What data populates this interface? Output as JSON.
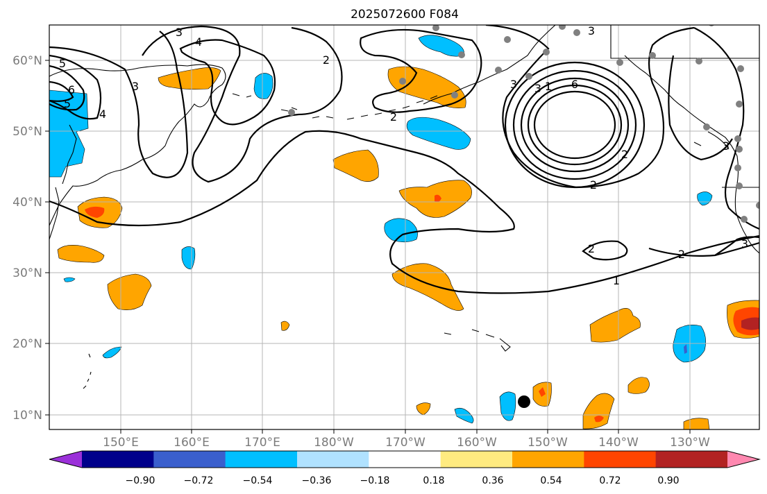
{
  "title": "2025072600 F084",
  "map": {
    "lat_labels": [
      "60°N",
      "50°N",
      "40°N",
      "30°N",
      "20°N",
      "10°N"
    ],
    "lon_labels": [
      "150°E",
      "160°E",
      "170°E",
      "180°W",
      "170°W",
      "160°W",
      "150°W",
      "140°W",
      "130°W"
    ],
    "contour_labels": [
      "3",
      "4",
      "5",
      "6",
      "5",
      "4",
      "3",
      "2",
      "2",
      "3",
      "3",
      "1",
      "6",
      "3",
      "2",
      "2",
      "2",
      "2",
      "1",
      "3",
      "3"
    ],
    "colors": {
      "strong_negative": "#00bfff",
      "weak_negative": "#add8f8",
      "weak_positive": "#ffeb80",
      "positive": "#ffa500",
      "strong_positive": "#ff4500",
      "very_strong_positive": "#b22222",
      "station_dot": "#808080"
    }
  },
  "colorbar": {
    "tick_labels": [
      "−0.90",
      "−0.72",
      "−0.54",
      "−0.36",
      "−0.18",
      "0.18",
      "0.36",
      "0.54",
      "0.72",
      "0.90"
    ],
    "colors": [
      "#9b30d9",
      "#00008b",
      "#3a5fcd",
      "#00bfff",
      "#b0e2ff",
      "#ffffff",
      "#ffeb80",
      "#ffa500",
      "#ff4500",
      "#b22222",
      "#ff88b0"
    ]
  }
}
